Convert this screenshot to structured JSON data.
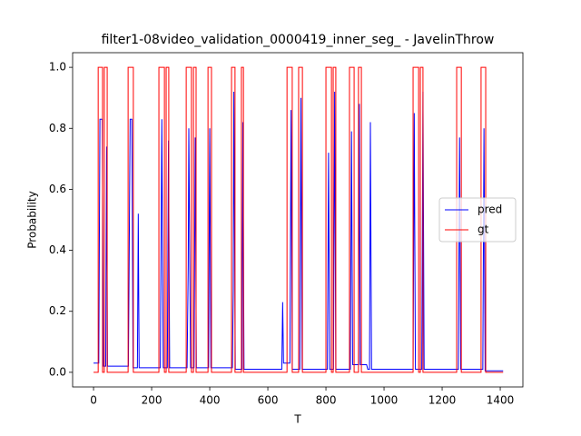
{
  "chart_data": {
    "type": "line",
    "title": "filter1-08video_validation_0000419_inner_seg_ - JavelinThrow",
    "x_label": "T",
    "y_label": "Probability",
    "xlim": [
      -72,
      1478
    ],
    "ylim": [
      -0.048,
      1.048
    ],
    "xticks": [
      0,
      200,
      400,
      600,
      800,
      1000,
      1200,
      1400
    ],
    "yticks": [
      {
        "value": 0,
        "label": "0.0"
      },
      {
        "value": 0.2,
        "label": "0.2"
      },
      {
        "value": 0.4,
        "label": "0.4"
      },
      {
        "value": 0.6,
        "label": "0.6"
      },
      {
        "value": 0.8,
        "label": "0.8"
      },
      {
        "value": 1,
        "label": "1.0"
      }
    ],
    "legend": "center right",
    "series": [
      {
        "name": "pred",
        "color": "#0000ff",
        "x": [
          0,
          18,
          22,
          30,
          34,
          42,
          45,
          48,
          120,
          126,
          132,
          136,
          151,
          154,
          157,
          230,
          235,
          240,
          254,
          258,
          262,
          322,
          326,
          328,
          334,
          346,
          350,
          354,
          396,
          400,
          404,
          478,
          481,
          483,
          488,
          511,
          514,
          518,
          648,
          651,
          654,
          676,
          680,
          684,
          710,
          714,
          718,
          805,
          809,
          813,
          826,
          830,
          834,
          884,
          888,
          892,
          912,
          915,
          918,
          940,
          944,
          950,
          953,
          957,
          1100,
          1104,
          1108,
          1130,
          1134,
          1138,
          1256,
          1260,
          1264,
          1340,
          1344,
          1348,
          1410
        ],
        "values": [
          0.03,
          0.03,
          0.83,
          0.83,
          0.02,
          0.02,
          0.74,
          0.02,
          0.02,
          0.83,
          0.83,
          0.015,
          0.015,
          0.52,
          0.015,
          0.015,
          0.83,
          0.015,
          0.015,
          0.76,
          0.015,
          0.015,
          0.35,
          0.8,
          0.015,
          0.015,
          0.77,
          0.015,
          0.015,
          0.8,
          0.015,
          0.015,
          0.27,
          0.92,
          0.01,
          0.01,
          0.82,
          0.01,
          0.01,
          0.23,
          0.03,
          0.03,
          0.86,
          0.01,
          0.01,
          0.9,
          0.01,
          0.01,
          0.72,
          0.01,
          0.01,
          0.92,
          0.01,
          0.01,
          0.79,
          0.025,
          0.025,
          0.88,
          0.025,
          0.025,
          0.01,
          0.01,
          0.82,
          0.01,
          0.01,
          0.85,
          0.01,
          0.01,
          0.92,
          0.01,
          0.01,
          0.77,
          0.01,
          0.01,
          0.8,
          0.005,
          0.005
        ]
      },
      {
        "name": "gt",
        "color": "#ff0000",
        "x": [
          0,
          16,
          16,
          31,
          31,
          37,
          37,
          47,
          47,
          119,
          119,
          137,
          137,
          225,
          225,
          244,
          244,
          250,
          250,
          259,
          259,
          319,
          319,
          337,
          337,
          344,
          344,
          353,
          353,
          394,
          394,
          406,
          406,
          475,
          475,
          487,
          487,
          509,
          509,
          516,
          516,
          666,
          666,
          684,
          684,
          706,
          706,
          719,
          719,
          800,
          800,
          819,
          819,
          825,
          825,
          834,
          834,
          881,
          881,
          897,
          897,
          912,
          912,
          922,
          922,
          1100,
          1100,
          1119,
          1119,
          1125,
          1125,
          1134,
          1134,
          1250,
          1250,
          1266,
          1266,
          1334,
          1334,
          1350,
          1350,
          1410
        ],
        "values": [
          0,
          0,
          1,
          1,
          0,
          0,
          1,
          1,
          0,
          0,
          1,
          1,
          0,
          0,
          1,
          1,
          0,
          0,
          1,
          1,
          0,
          0,
          1,
          1,
          0,
          0,
          1,
          1,
          0,
          0,
          1,
          1,
          0,
          0,
          1,
          1,
          0,
          0,
          1,
          1,
          0,
          0,
          1,
          1,
          0,
          0,
          1,
          1,
          0,
          0,
          1,
          1,
          0,
          0,
          1,
          1,
          0,
          0,
          1,
          1,
          0,
          0,
          1,
          1,
          0,
          0,
          1,
          1,
          0,
          0,
          1,
          1,
          0,
          0,
          1,
          1,
          0,
          0,
          1,
          1,
          0,
          0
        ]
      }
    ]
  }
}
